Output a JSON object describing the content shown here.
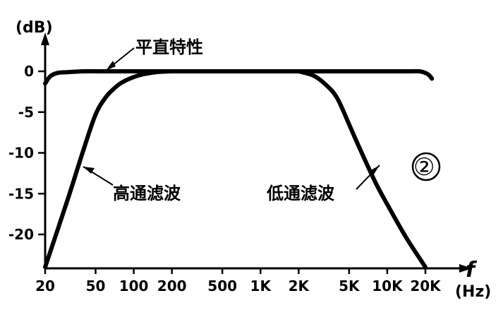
{
  "chart_data": {
    "type": "line",
    "title": "",
    "ylabel": "(dB)",
    "xlabel": "f",
    "xunit": "(Hz)",
    "xscale": "log",
    "xlim": [
      20,
      25000
    ],
    "ylim": [
      -25,
      0
    ],
    "x_ticks": [
      {
        "value": 20,
        "label": "20"
      },
      {
        "value": 50,
        "label": "50"
      },
      {
        "value": 100,
        "label": "100"
      },
      {
        "value": 200,
        "label": "200"
      },
      {
        "value": 500,
        "label": "500"
      },
      {
        "value": 1000,
        "label": "1K"
      },
      {
        "value": 2000,
        "label": "2K"
      },
      {
        "value": 5000,
        "label": "5K"
      },
      {
        "value": 10000,
        "label": "10K"
      },
      {
        "value": 20000,
        "label": "20K"
      }
    ],
    "y_ticks": [
      {
        "value": 0,
        "label": "0"
      },
      {
        "value": -5,
        "label": "-5"
      },
      {
        "value": -10,
        "label": "-10"
      },
      {
        "value": -15,
        "label": "-15"
      },
      {
        "value": -20,
        "label": "-20"
      }
    ],
    "series": [
      {
        "name": "平直特性",
        "x": [
          20,
          22,
          25,
          30,
          40,
          60,
          100,
          500,
          1000,
          5000,
          10000,
          15000,
          18000,
          20000,
          21500,
          22500
        ],
        "y": [
          -1.5,
          -0.6,
          -0.2,
          -0.1,
          0,
          0,
          0,
          0,
          0,
          0,
          0,
          0,
          0,
          -0.2,
          -0.5,
          -0.9
        ]
      },
      {
        "name": "高通滤波",
        "x": [
          20,
          30,
          40,
          50,
          60,
          70,
          80,
          100,
          120,
          150,
          200
        ],
        "y": [
          -24,
          -15.8,
          -9.7,
          -5.3,
          -3.2,
          -2.1,
          -1.4,
          -0.7,
          -0.35,
          -0.1,
          0
        ]
      },
      {
        "name": "低通滤波",
        "x": [
          2000,
          2600,
          3200,
          4000,
          5000,
          6000,
          8000,
          10000,
          14000,
          20000
        ],
        "y": [
          0,
          -0.5,
          -1.5,
          -3.2,
          -6.5,
          -9.3,
          -13.5,
          -16.3,
          -20.3,
          -24
        ]
      }
    ],
    "annotations": [
      "平直特性",
      "高通滤波",
      "低通滤波",
      "②"
    ]
  }
}
